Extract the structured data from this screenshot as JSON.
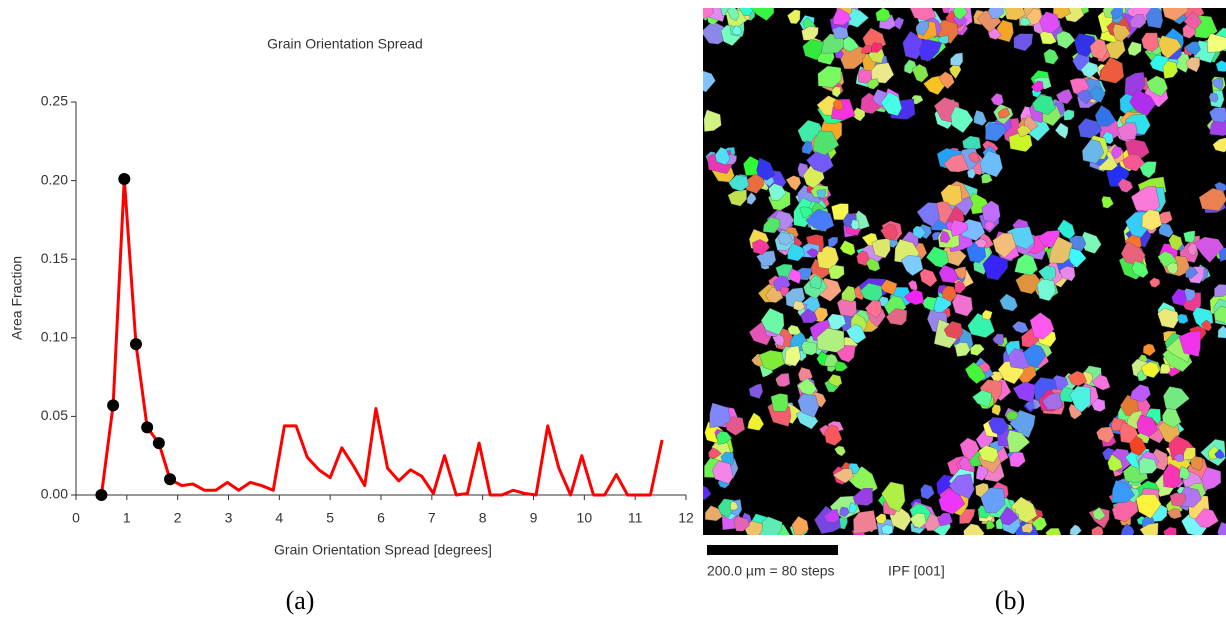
{
  "chart_data": {
    "type": "line",
    "title": "Grain Orientation Spread",
    "xlabel": "Grain Orientation Spread [degrees]",
    "ylabel": "Area Fraction",
    "xlim": [
      0,
      12
    ],
    "xticks": [
      0,
      1,
      2,
      3,
      4,
      5,
      6,
      7,
      8,
      9,
      10,
      11,
      12
    ],
    "ylim": [
      0,
      0.25
    ],
    "yticks": [
      {
        "value": 0,
        "label": "0.00"
      },
      0.05,
      {
        "value": 0.1,
        "label": "0.10"
      },
      0.15,
      {
        "value": 0.2,
        "label": "0.20"
      },
      0.25
    ],
    "series": [
      {
        "color": "#ff0000",
        "line": true,
        "marker": false,
        "x": [
          0.5,
          0.73,
          0.95,
          1.18,
          1.4,
          1.63,
          1.85,
          2.08,
          2.3,
          2.53,
          2.75,
          2.98,
          3.2,
          3.43,
          3.65,
          3.88,
          4.1,
          4.33,
          4.55,
          4.78,
          5.0,
          5.23,
          5.45,
          5.68,
          5.9,
          6.13,
          6.35,
          6.58,
          6.8,
          7.03,
          7.25,
          7.48,
          7.7,
          7.93,
          8.15,
          8.38,
          8.6,
          8.83,
          9.05,
          9.28,
          9.5,
          9.73,
          9.95,
          10.18,
          10.4,
          10.63,
          10.85,
          11.08,
          11.3,
          11.53
        ],
        "values": [
          0,
          0.057,
          0.201,
          0.096,
          0.043,
          0.033,
          0.01,
          0.006,
          0.007,
          0.003,
          0.003,
          0.008,
          0.003,
          0.008,
          0.006,
          0.003,
          0.044,
          0.044,
          0.024,
          0.016,
          0.011,
          0.03,
          0.019,
          0.006,
          0.055,
          0.017,
          0.009,
          0.016,
          0.012,
          0.001,
          0.025,
          0,
          0.001,
          0.033,
          0,
          0,
          0.003,
          0.001,
          0,
          0.044,
          0.017,
          0,
          0.025,
          0,
          0,
          0.013,
          0,
          0,
          0,
          0.035
        ]
      },
      {
        "color": "#000000",
        "line": false,
        "marker": true,
        "x": [
          0.5,
          0.73,
          0.95,
          1.18,
          1.4,
          1.63,
          1.85
        ],
        "values": [
          0,
          0.057,
          0.201,
          0.096,
          0.043,
          0.033,
          0.01
        ]
      }
    ]
  },
  "map": {
    "scale_bar": "200.0 µm = 80 steps",
    "label": "IPF [001]"
  },
  "captions": [
    "(a)",
    "(b)"
  ]
}
